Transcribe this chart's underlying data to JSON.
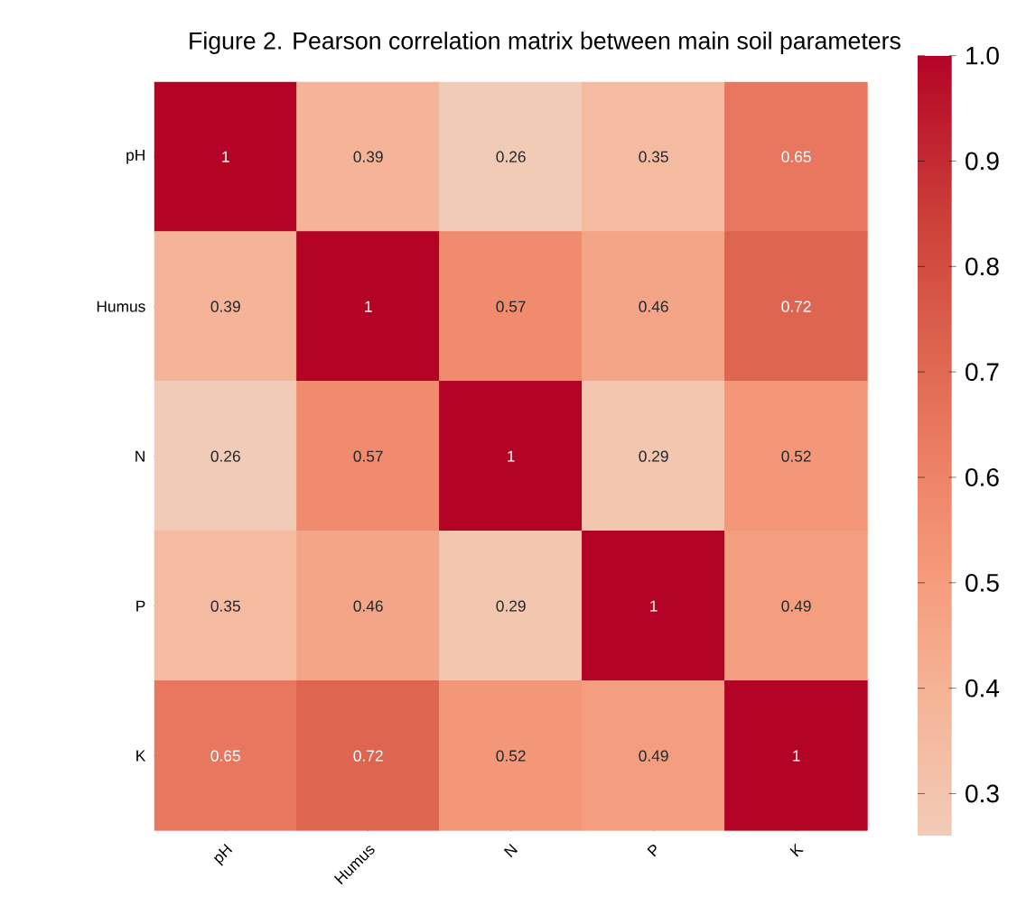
{
  "chart_data": {
    "type": "heatmap",
    "title": "Figure 2. Pearson correlation matrix between main soil parameters",
    "categories": [
      "pH",
      "Humus",
      "N",
      "P",
      "K"
    ],
    "y_categories": [
      "pH",
      "Humus",
      "N",
      "P",
      "K"
    ],
    "cells": [
      [
        1,
        0.39,
        0.26,
        0.35,
        0.65
      ],
      [
        0.39,
        1,
        0.57,
        0.46,
        0.72
      ],
      [
        0.26,
        0.57,
        1,
        0.29,
        0.52
      ],
      [
        0.35,
        0.46,
        0.29,
        1,
        0.49
      ],
      [
        0.65,
        0.72,
        0.52,
        0.49,
        1
      ]
    ],
    "data_labels": true,
    "clim": [
      0.26,
      1.0
    ],
    "cticks": [
      {
        "value": 0.3,
        "label": "0.3"
      },
      {
        "value": 0.4,
        "label": "0.4"
      },
      {
        "value": 0.5,
        "label": "0.5"
      },
      {
        "value": 0.6,
        "label": "0.6"
      },
      {
        "value": 0.7,
        "label": "0.7"
      },
      {
        "value": 0.8,
        "label": "0.8"
      },
      {
        "value": 0.9,
        "label": "0.9"
      },
      {
        "value": 1.0,
        "label": "1.0"
      }
    ]
  }
}
